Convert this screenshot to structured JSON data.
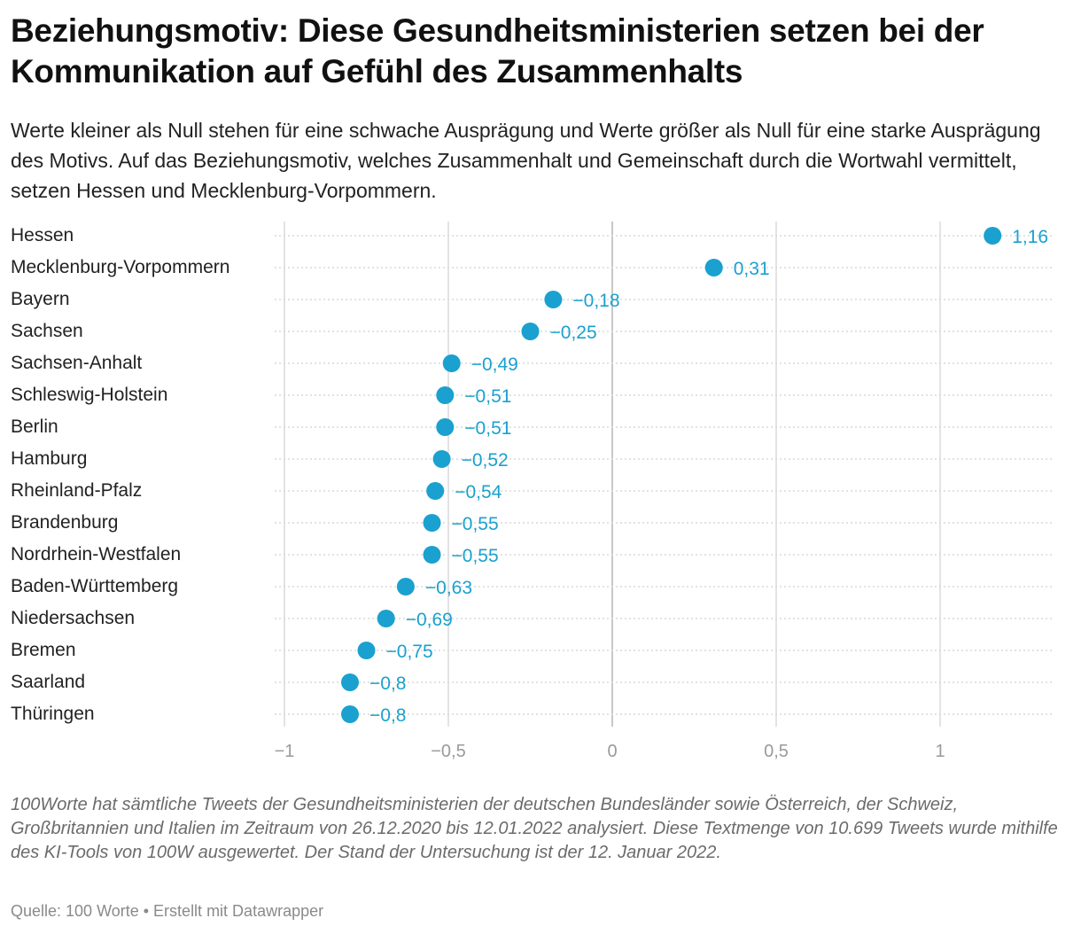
{
  "header": {
    "title": "Beziehungsmotiv: Diese Gesundheitsministerien setzen bei der Kommunikation auf Gefühl des Zusammenhalts",
    "subtitle": "Werte kleiner als Null stehen für eine schwache Ausprägung und Werte größer als Null für eine starke Ausprägung des Motivs. Auf das Beziehungsmotiv, welches Zusammenhalt und Gemeinschaft durch die Wortwahl vermittelt, setzen Hessen und Mecklenburg-Vorpommern."
  },
  "footer": {
    "notes": "100Worte hat sämtliche Tweets der Gesundheitsministerien der deutschen Bundesländer sowie Österreich, der Schweiz, Großbritannien und Italien im Zeitraum von 26.12.2020 bis 12.01.2022 analysiert. Diese Textmenge von 10.699 Tweets wurde mithilfe des KI-Tools von 100W ausgewertet. Der Stand der Untersuchung ist der 12. Januar 2022.",
    "source": "Quelle: 100 Worte • Erstellt mit Datawrapper"
  },
  "colors": {
    "dot": "#1aa1cf",
    "label": "#1aa1cf",
    "grid": "#e3e3e3",
    "zero_line": "#c8c8c8",
    "row_line": "#d9d9d9",
    "tick_text": "#9a9a9a"
  },
  "chart_data": {
    "type": "scatter",
    "subtype": "dot-plot",
    "title": "Beziehungsmotiv: Diese Gesundheitsministerien setzen bei der Kommunikation auf Gefühl des Zusammenhalts",
    "xlabel": "",
    "ylabel": "",
    "xlim": [
      -1,
      1.35
    ],
    "x_ticks": [
      -1,
      -0.5,
      0,
      0.5,
      1
    ],
    "x_tick_labels": [
      "−1",
      "−0,5",
      "0",
      "0,5",
      "1"
    ],
    "grid": true,
    "legend": "none",
    "categories": [
      "Hessen",
      "Mecklenburg-Vorpommern",
      "Bayern",
      "Sachsen",
      "Sachsen-Anhalt",
      "Schleswig-Holstein",
      "Berlin",
      "Hamburg",
      "Rheinland-Pfalz",
      "Brandenburg",
      "Nordrhein-Westfalen",
      "Baden-Württemberg",
      "Niedersachsen",
      "Bremen",
      "Saarland",
      "Thüringen"
    ],
    "values": [
      1.16,
      0.31,
      -0.18,
      -0.25,
      -0.49,
      -0.51,
      -0.51,
      -0.52,
      -0.54,
      -0.55,
      -0.55,
      -0.63,
      -0.69,
      -0.75,
      -0.8,
      -0.8
    ],
    "value_labels": [
      "1,16",
      "0,31",
      "−0,18",
      "−0,25",
      "−0,49",
      "−0,51",
      "−0,51",
      "−0,52",
      "−0,54",
      "−0,55",
      "−0,55",
      "−0,63",
      "−0,69",
      "−0,75",
      "−0,8",
      "−0,8"
    ]
  }
}
